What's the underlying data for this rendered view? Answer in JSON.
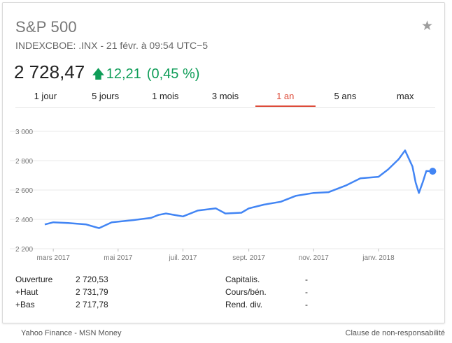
{
  "header": {
    "title": "S&P 500",
    "subtitle": "INDEXCBOE: .INX - 21 févr. à 09:54 UTC−5",
    "price": "2 728,47",
    "change": "12,21",
    "change_pct": "(0,45 %)",
    "star_icon": "star-icon",
    "arrow_icon": "arrow-up-icon",
    "positive_color": "#0f9d58"
  },
  "tabs": [
    {
      "label": "1 jour",
      "active": false
    },
    {
      "label": "5 jours",
      "active": false
    },
    {
      "label": "1 mois",
      "active": false
    },
    {
      "label": "3 mois",
      "active": false
    },
    {
      "label": "1 an",
      "active": true
    },
    {
      "label": "5 ans",
      "active": false
    },
    {
      "label": "max",
      "active": false
    }
  ],
  "accent_color": "#dd4b39",
  "chart_data": {
    "type": "line",
    "title": "",
    "xlabel": "",
    "ylabel": "",
    "ylim": [
      2200,
      3000
    ],
    "yticks": [
      "2 200",
      "2 400",
      "2 600",
      "2 800",
      "3 000"
    ],
    "ytick_values": [
      2200,
      2400,
      2600,
      2800,
      3000
    ],
    "xticks": [
      "mars 2017",
      "mai 2017",
      "juil. 2017",
      "sept. 2017",
      "nov. 2017",
      "janv. 2018"
    ],
    "xtick_values": [
      "2017-03-01",
      "2017-05-01",
      "2017-07-01",
      "2017-09-01",
      "2017-11-01",
      "2018-01-01"
    ],
    "grid": true,
    "line_color": "#4285f4",
    "series": [
      {
        "x": [
          "2017-02-21",
          "2017-03-01",
          "2017-03-15",
          "2017-04-01",
          "2017-04-13",
          "2017-04-25",
          "2017-05-15",
          "2017-06-01",
          "2017-06-08",
          "2017-06-15",
          "2017-07-01",
          "2017-07-15",
          "2017-08-01",
          "2017-08-10",
          "2017-08-25",
          "2017-09-01",
          "2017-09-15",
          "2017-10-01",
          "2017-10-15",
          "2017-11-01",
          "2017-11-15",
          "2017-12-01",
          "2017-12-15",
          "2018-01-01",
          "2018-01-10",
          "2018-01-20",
          "2018-01-26",
          "2018-02-02",
          "2018-02-05",
          "2018-02-08",
          "2018-02-12",
          "2018-02-15",
          "2018-02-21"
        ],
        "y": [
          2365,
          2380,
          2375,
          2365,
          2340,
          2380,
          2395,
          2410,
          2430,
          2440,
          2420,
          2460,
          2475,
          2440,
          2445,
          2475,
          2500,
          2520,
          2560,
          2580,
          2585,
          2630,
          2680,
          2690,
          2740,
          2810,
          2870,
          2760,
          2650,
          2580,
          2660,
          2730,
          2728
        ]
      }
    ],
    "last_point": {
      "x": "2018-02-21",
      "y": 2728
    }
  },
  "stats": {
    "left": [
      {
        "label": "Ouverture",
        "value": "2 720,53"
      },
      {
        "label": "+Haut",
        "value": "2 731,79"
      },
      {
        "label": "+Bas",
        "value": "2 717,78"
      }
    ],
    "right": [
      {
        "label": "Capitalis.",
        "value": "-"
      },
      {
        "label": "Cours/bén.",
        "value": "-"
      },
      {
        "label": "Rend. div.",
        "value": "-"
      }
    ]
  },
  "footer": {
    "sources": "Yahoo Finance - MSN Money",
    "disclaimer": "Clause de non-responsabilité"
  }
}
